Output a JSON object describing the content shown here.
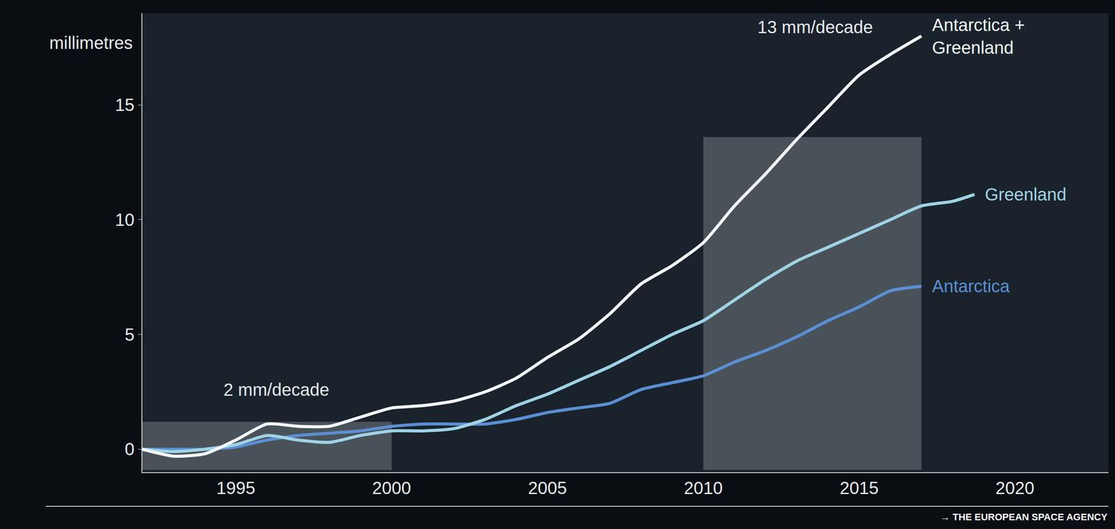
{
  "chart_data": {
    "type": "line",
    "y_label": "millimetres",
    "xlim": [
      1992,
      2023
    ],
    "xticks": [
      1995,
      2000,
      2005,
      2010,
      2015,
      2020
    ],
    "ylim": [
      -1,
      19
    ],
    "yticks": [
      0,
      5,
      10,
      15
    ],
    "grid": false,
    "series": [
      {
        "name": "Antarctica",
        "color": "#5b8fd4",
        "x": [
          1992,
          1993,
          1994,
          1995,
          1996,
          1997,
          1998,
          1999,
          2000,
          2001,
          2002,
          2003,
          2004,
          2005,
          2006,
          2007,
          2008,
          2009,
          2010,
          2011,
          2012,
          2013,
          2014,
          2015,
          2016,
          2017
        ],
        "values": [
          0,
          0,
          0,
          0.1,
          0.4,
          0.6,
          0.7,
          0.8,
          1.0,
          1.1,
          1.1,
          1.1,
          1.3,
          1.6,
          1.8,
          2.0,
          2.6,
          2.9,
          3.2,
          3.8,
          4.3,
          4.9,
          5.6,
          6.2,
          6.9,
          7.1
        ]
      },
      {
        "name": "Greenland",
        "color": "#9fd3e6",
        "x": [
          1992,
          1993,
          1994,
          1995,
          1996,
          1997,
          1998,
          1999,
          2000,
          2001,
          2002,
          2003,
          2004,
          2005,
          2006,
          2007,
          2008,
          2009,
          2010,
          2011,
          2012,
          2013,
          2014,
          2015,
          2016,
          2017,
          2018,
          2018.7
        ],
        "values": [
          0,
          -0.1,
          0,
          0.2,
          0.6,
          0.4,
          0.3,
          0.6,
          0.8,
          0.8,
          0.9,
          1.3,
          1.9,
          2.4,
          3.0,
          3.6,
          4.3,
          5.0,
          5.6,
          6.5,
          7.4,
          8.2,
          8.8,
          9.4,
          10.0,
          10.6,
          10.8,
          11.1
        ]
      },
      {
        "name": "Antarctica + Greenland",
        "color": "#f4f8fa",
        "x": [
          1992,
          1993,
          1994,
          1995,
          1996,
          1997,
          1998,
          1999,
          2000,
          2001,
          2002,
          2003,
          2004,
          2005,
          2006,
          2007,
          2008,
          2009,
          2010,
          2011,
          2012,
          2013,
          2014,
          2015,
          2016,
          2017
        ],
        "values": [
          0,
          -0.3,
          -0.2,
          0.4,
          1.1,
          1.0,
          1.0,
          1.4,
          1.8,
          1.9,
          2.1,
          2.5,
          3.1,
          4.0,
          4.8,
          5.9,
          7.2,
          8.0,
          9.0,
          10.6,
          12.0,
          13.5,
          14.9,
          16.3,
          17.2,
          18.0
        ]
      }
    ],
    "highlights": [
      {
        "x0": 1992,
        "x1": 2000,
        "y0": -0.9,
        "y1": 1.2
      },
      {
        "x0": 2010,
        "x1": 2017,
        "y0": -0.9,
        "y1": 13.6
      }
    ],
    "annotations": [
      {
        "text": "2 mm/decade",
        "x": 1996.3,
        "y": 2.6
      },
      {
        "text": "13 mm/decade",
        "x": 2013.6,
        "y": 18.4
      }
    ],
    "footer": "→ THE EUROPEAN SPACE AGENCY"
  }
}
